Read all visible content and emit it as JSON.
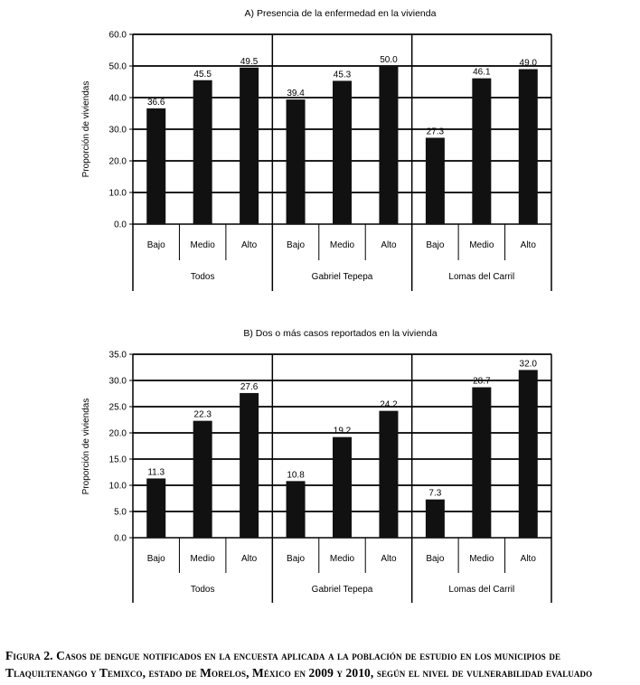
{
  "caption": "Figura 2. Casos de dengue notificados en la encuesta aplicada a la población de estudio en los municipios de Tlaquiltenango y Temixco, estado de Morelos, México en 2009 y 2010, según el nivel de vulnerabilidad evaluado",
  "chart_data": [
    {
      "type": "bar",
      "title": "A) Presencia de la enfermedad en la vivienda",
      "ylabel": "Proporción de viviendas",
      "xlabel": "",
      "ylim": [
        0,
        60
      ],
      "yticks": [
        "0.0",
        "10.0",
        "20.0",
        "30.0",
        "40.0",
        "50.0",
        "60.0"
      ],
      "grid": true,
      "groups": [
        {
          "name": "Todos",
          "categories": [
            "Bajo",
            "Medio",
            "Alto"
          ],
          "values": [
            36.6,
            45.5,
            49.5
          ],
          "labels": [
            "36.6",
            "45.5",
            "49.5"
          ]
        },
        {
          "name": "Gabriel Tepepa",
          "categories": [
            "Bajo",
            "Medio",
            "Alto"
          ],
          "values": [
            39.4,
            45.3,
            50.0
          ],
          "labels": [
            "39.4",
            "45.3",
            "50.0"
          ]
        },
        {
          "name": "Lomas del Carril",
          "categories": [
            "Bajo",
            "Medio",
            "Alto"
          ],
          "values": [
            27.3,
            46.1,
            49.0
          ],
          "labels": [
            "27.3",
            "46.1",
            "49.0"
          ]
        }
      ]
    },
    {
      "type": "bar",
      "title": "B) Dos o más casos reportados en la vivienda",
      "ylabel": "Proporción de viviendas",
      "xlabel": "",
      "ylim": [
        0,
        35
      ],
      "yticks": [
        "0.0",
        "5.0",
        "10.0",
        "15.0",
        "20.0",
        "25.0",
        "30.0",
        "35.0"
      ],
      "grid": true,
      "groups": [
        {
          "name": "Todos",
          "categories": [
            "Bajo",
            "Medio",
            "Alto"
          ],
          "values": [
            11.3,
            22.3,
            27.6
          ],
          "labels": [
            "11.3",
            "22.3",
            "27.6"
          ]
        },
        {
          "name": "Gabriel Tepepa",
          "categories": [
            "Bajo",
            "Medio",
            "Alto"
          ],
          "values": [
            10.8,
            19.2,
            24.2
          ],
          "labels": [
            "10.8",
            "19.2",
            "24.2"
          ]
        },
        {
          "name": "Lomas del Carril",
          "categories": [
            "Bajo",
            "Medio",
            "Alto"
          ],
          "values": [
            7.3,
            28.7,
            32.0
          ],
          "labels": [
            "7.3",
            "28.7",
            "32.0"
          ]
        }
      ]
    }
  ]
}
